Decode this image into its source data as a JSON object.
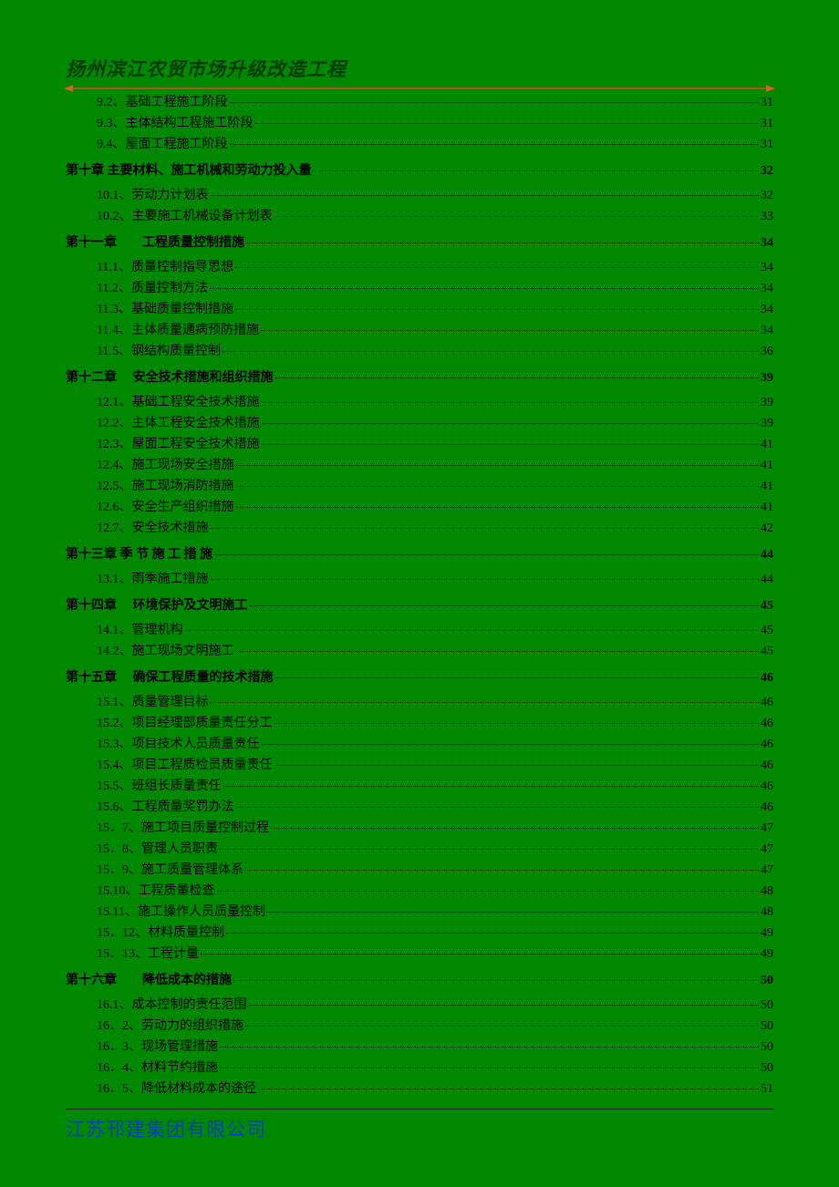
{
  "header": {
    "title": "扬州滨江农贸市场升级改造工程"
  },
  "footer": {
    "company": "江苏邗建集团有限公司"
  },
  "colors": {
    "background": "#008800",
    "header_text": "#003b00",
    "divider": "#cc6622",
    "body_text": "#000000",
    "footer_text": "#073fbb"
  },
  "toc": [
    {
      "level": "sub",
      "label": "9.2、基础工程施工阶段",
      "page": "31"
    },
    {
      "level": "sub",
      "label": "9.3、主体结构工程施工阶段",
      "page": "31"
    },
    {
      "level": "sub",
      "label": "9.4、屋面工程施工阶段",
      "page": "31"
    },
    {
      "level": "chapter",
      "label": "第十章  主要材料、施工机械和劳动力投入量",
      "page": "32"
    },
    {
      "level": "sub",
      "label": "10.1、劳动力计划表",
      "page": "32"
    },
    {
      "level": "sub",
      "label": "10.2、主要施工机械设备计划表",
      "page": "33"
    },
    {
      "level": "chapter",
      "label": "第十一章　　工程质量控制措施",
      "page": "34"
    },
    {
      "level": "sub",
      "label": "11.1、质量控制指导思想",
      "page": "34"
    },
    {
      "level": "sub",
      "label": "11.2、质量控制方法",
      "page": "34"
    },
    {
      "level": "sub",
      "label": "11.3、基础质量控制措施",
      "page": "34"
    },
    {
      "level": "sub",
      "label": "11.4、主体质量通病预防措施",
      "page": "34"
    },
    {
      "level": "sub",
      "label": "11.5、钢结构质量控制",
      "page": "36"
    },
    {
      "level": "chapter",
      "label": "第十二章　 安全技术措施和组织措施",
      "page": "39"
    },
    {
      "level": "sub",
      "label": "12.1、基础工程安全技术措施",
      "page": "39"
    },
    {
      "level": "sub",
      "label": "12.2、主体工程安全技术措施",
      "page": "39"
    },
    {
      "level": "sub",
      "label": "12.3、屋面工程安全技术措施",
      "page": "41"
    },
    {
      "level": "sub",
      "label": "12.4、施工现场安全措施",
      "page": "41"
    },
    {
      "level": "sub",
      "label": "12.5、施工现场消防措施",
      "page": "41"
    },
    {
      "level": "sub",
      "label": "12.6、安全生产组织措施",
      "page": "41"
    },
    {
      "level": "sub",
      "label": "12.7、安全技术措施",
      "page": "42"
    },
    {
      "level": "chapter",
      "label": "第十三章  季  节  施  工  措  施",
      "page": "44"
    },
    {
      "level": "sub",
      "label": "13.1、雨季施工措施",
      "page": "44"
    },
    {
      "level": "chapter",
      "label": "第十四章　 环境保护及文明施工",
      "page": "45"
    },
    {
      "level": "sub",
      "label": "14.1、管理机构",
      "page": "45"
    },
    {
      "level": "sub",
      "label": "14.2、施工现场文明施工",
      "page": "45"
    },
    {
      "level": "chapter",
      "label": "第十五章　 确保工程质量的技术措施",
      "page": "46"
    },
    {
      "level": "sub",
      "label": "15.1、质量管理目标",
      "page": "46"
    },
    {
      "level": "sub",
      "label": "15.2、项目经理部质量责任分工",
      "page": "46"
    },
    {
      "level": "sub",
      "label": "15.3、项目技术人员质量责任",
      "page": "46"
    },
    {
      "level": "sub",
      "label": "15.4、项目工程质检员质量责任",
      "page": "46"
    },
    {
      "level": "sub",
      "label": "15.5、班组长质量责任",
      "page": "46"
    },
    {
      "level": "sub",
      "label": "15.6、工程质量奖罚办法",
      "page": "46"
    },
    {
      "level": "sub",
      "label": "15．7、施工项目质量控制过程",
      "page": "47"
    },
    {
      "level": "sub",
      "label": "15．8、管理人员职责",
      "page": "47"
    },
    {
      "level": "sub",
      "label": "15．9、施工质量管理体系",
      "page": "47"
    },
    {
      "level": "sub",
      "label": "15.10、工程质量检查",
      "page": "48"
    },
    {
      "level": "sub",
      "label": "15.11、施工操作人员质量控制",
      "page": "48"
    },
    {
      "level": "sub",
      "label": "15．12、材料质量控制",
      "page": "49"
    },
    {
      "level": "sub",
      "label": "15．13、工程计量",
      "page": "49"
    },
    {
      "level": "chapter",
      "label": "第十六章　　降低成本的措施",
      "page": "50"
    },
    {
      "level": "sub",
      "label": "16.1、成本控制的责任范围",
      "page": "50"
    },
    {
      "level": "sub",
      "label": "16．2、劳动力的组织措施",
      "page": "50"
    },
    {
      "level": "sub",
      "label": "16．3、现场管理措施",
      "page": "50"
    },
    {
      "level": "sub",
      "label": "16．4、材料节约措施",
      "page": "50"
    },
    {
      "level": "sub",
      "label": "16．5、降低材料成本的途径",
      "page": "51"
    }
  ]
}
